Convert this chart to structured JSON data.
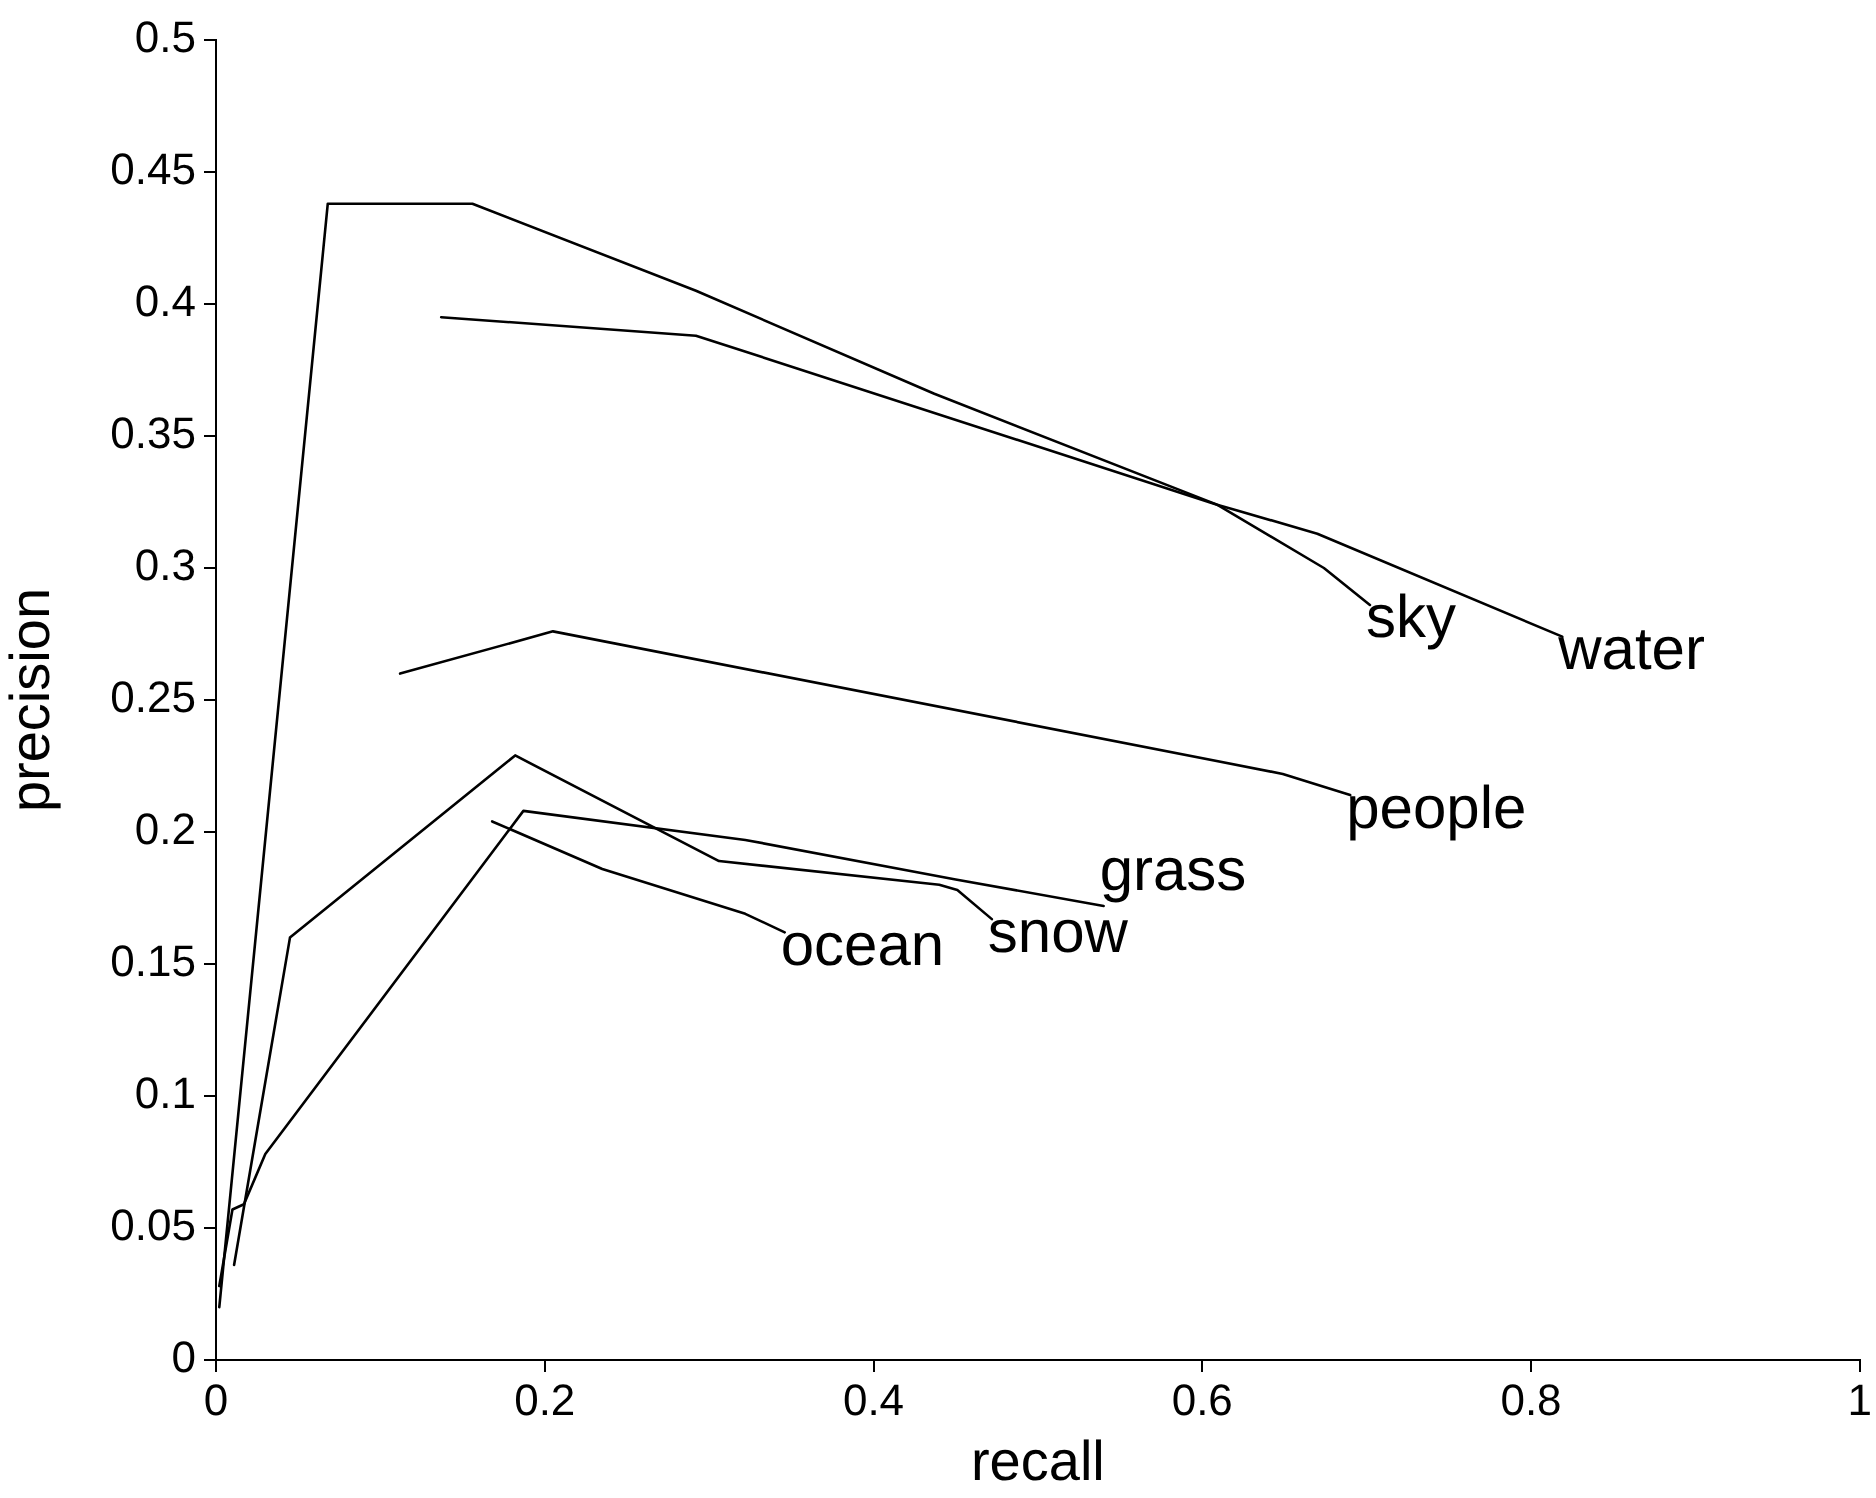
{
  "chart_data": {
    "type": "line",
    "xlabel": "recall",
    "ylabel": "precision",
    "xlim": [
      0,
      1
    ],
    "xticks": [
      0,
      0.2,
      0.4,
      0.6,
      0.8,
      1
    ],
    "ylim": [
      0,
      0.5
    ],
    "yticks": [
      0,
      0.05,
      0.1,
      0.15,
      0.2,
      0.25,
      0.3,
      0.35,
      0.4,
      0.45,
      0.5
    ],
    "grid": false,
    "legend": false,
    "marker": "none",
    "line_style": "solid",
    "series": [
      {
        "name": "sky",
        "color": "#000000",
        "x": [
          0.002,
          0.068,
          0.156,
          0.292,
          0.437,
          0.609,
          0.674,
          0.702
        ],
        "values": [
          0.02,
          0.438,
          0.438,
          0.405,
          0.366,
          0.324,
          0.3,
          0.286
        ]
      },
      {
        "name": "water",
        "color": "#000000",
        "x": [
          0.137,
          0.292,
          0.609,
          0.67,
          0.819
        ],
        "values": [
          0.395,
          0.388,
          0.324,
          0.313,
          0.274
        ]
      },
      {
        "name": "people",
        "color": "#000000",
        "x": [
          0.112,
          0.205,
          0.649,
          0.69
        ],
        "values": [
          0.26,
          0.276,
          0.222,
          0.214
        ]
      },
      {
        "name": "ocean",
        "color": "#000000",
        "x": [
          0.168,
          0.235,
          0.322,
          0.346
        ],
        "values": [
          0.204,
          0.186,
          0.169,
          0.162
        ]
      },
      {
        "name": "snow",
        "color": "#000000",
        "x": [
          0.011,
          0.045,
          0.182,
          0.306,
          0.44,
          0.451,
          0.472
        ],
        "values": [
          0.036,
          0.16,
          0.229,
          0.189,
          0.18,
          0.178,
          0.167
        ]
      },
      {
        "name": "grass",
        "color": "#000000",
        "x": [
          0.002,
          0.01,
          0.017,
          0.03,
          0.187,
          0.322,
          0.45,
          0.54
        ],
        "values": [
          0.028,
          0.057,
          0.059,
          0.078,
          0.208,
          0.197,
          0.182,
          0.172
        ]
      }
    ]
  }
}
